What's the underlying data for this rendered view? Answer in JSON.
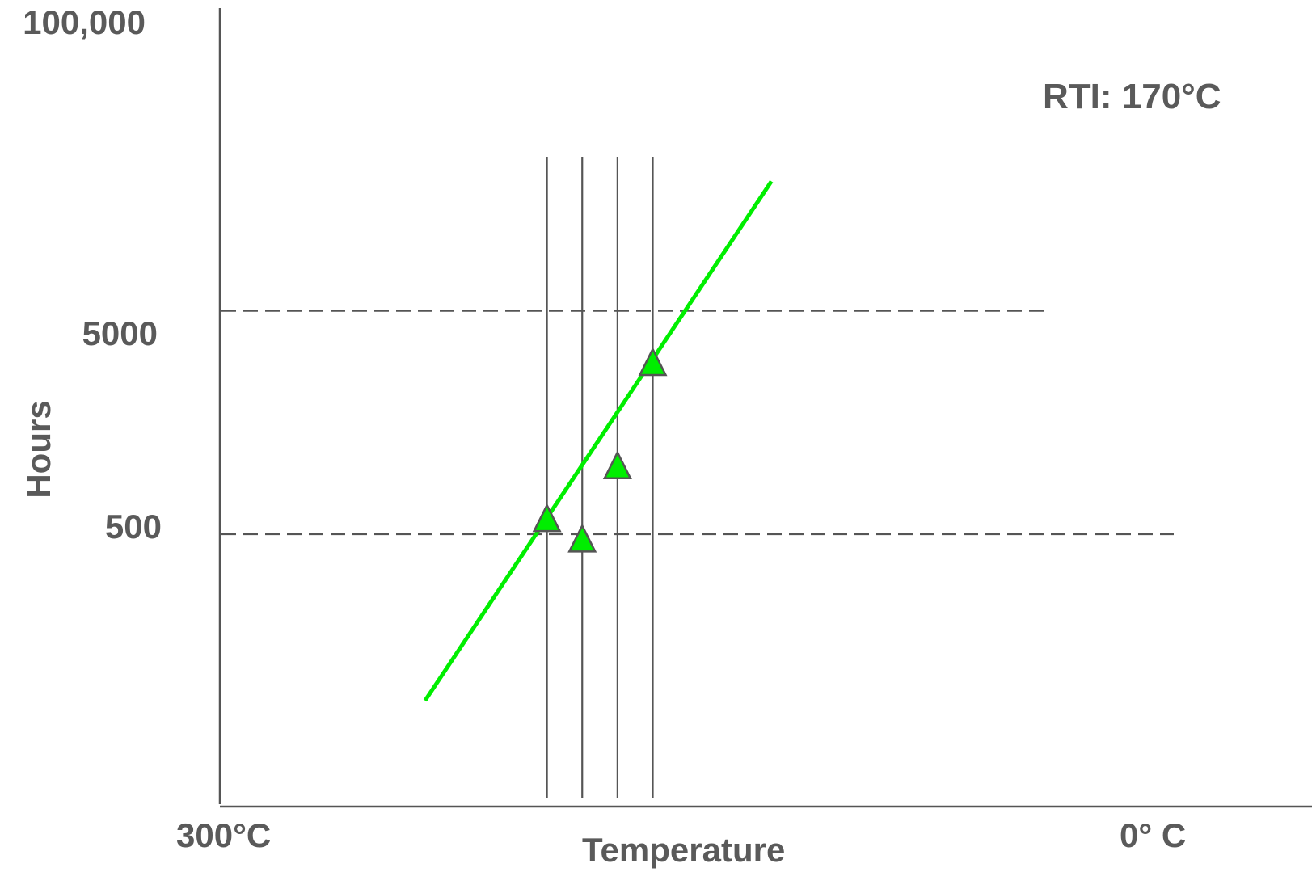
{
  "chart_data": {
    "type": "scatter",
    "title": "",
    "xlabel": "Temperature",
    "ylabel": "Hours",
    "x_tick_labels": [
      "300°C",
      "0° C"
    ],
    "y_tick_labels": [
      "100,000",
      "5000",
      "500"
    ],
    "annotation": "RTI: 170°C",
    "grid": false,
    "legend": "none",
    "marker": "triangle",
    "colors": {
      "series": "#00ee00",
      "axes": "#555555",
      "text": "#5a5a5a"
    },
    "points": [
      {
        "temperature_c": 198,
        "hours": 580
      },
      {
        "temperature_c": 187,
        "hours": 470
      },
      {
        "temperature_c": 176,
        "hours": 1000
      },
      {
        "temperature_c": 165,
        "hours": 2900
      }
    ],
    "trend_line": [
      {
        "temperature_c": 236,
        "hours": 90
      },
      {
        "temperature_c": 128,
        "hours": 19000
      }
    ],
    "reference_hours": [
      5000,
      500
    ]
  }
}
